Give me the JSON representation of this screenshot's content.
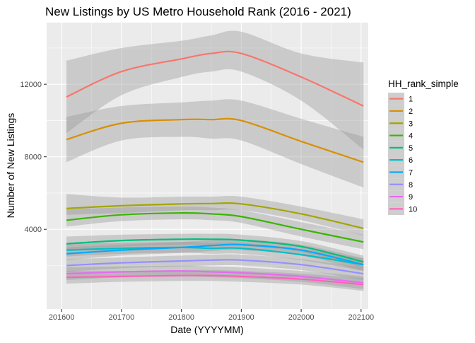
{
  "chart_data": {
    "type": "line",
    "title": "New Listings by US Metro Household Rank (2016 - 2021)",
    "xlabel": "Date (YYYYMM)",
    "ylabel": "Number of New Listings",
    "xlim": [
      201575,
      202112
    ],
    "ylim": [
      -400,
      15400
    ],
    "x_ticks": [
      201600,
      201700,
      201800,
      201900,
      202000,
      202100
    ],
    "x_tick_labels": [
      "201600",
      "201700",
      "201800",
      "201900",
      "202000",
      "202100"
    ],
    "y_ticks": [
      4000,
      8000,
      12000
    ],
    "y_tick_labels": [
      "4000",
      "8000",
      "12000"
    ],
    "grid": true,
    "legend": {
      "title": "HH_rank_simple",
      "placement": "right"
    },
    "x": [
      201608,
      201700,
      201800,
      201850,
      201900,
      202000,
      202104
    ],
    "series": [
      {
        "name": "1",
        "color": "#F8766D",
        "values": [
          11300,
          12700,
          13400,
          13700,
          13700,
          12400,
          10800
        ],
        "band": [
          [
            9300,
            13300
          ],
          [
            11400,
            14000
          ],
          [
            12400,
            14400
          ],
          [
            12700,
            14700
          ],
          [
            12700,
            14900
          ],
          [
            11100,
            13700
          ],
          [
            8400,
            13200
          ]
        ]
      },
      {
        "name": "2",
        "color": "#D89000",
        "values": [
          8950,
          9850,
          10050,
          10050,
          10000,
          8850,
          7700
        ],
        "band": [
          [
            7700,
            10200
          ],
          [
            8900,
            10800
          ],
          [
            9100,
            11000
          ],
          [
            9000,
            11100
          ],
          [
            8900,
            11100
          ],
          [
            7600,
            10100
          ],
          [
            6300,
            9100
          ]
        ]
      },
      {
        "name": "3",
        "color": "#A3A500",
        "values": [
          5150,
          5300,
          5400,
          5420,
          5400,
          4850,
          4050
        ],
        "band": [
          [
            4800,
            5950
          ],
          [
            4900,
            5750
          ],
          [
            5050,
            5800
          ],
          [
            5050,
            5800
          ],
          [
            5050,
            5800
          ],
          [
            4500,
            5250
          ],
          [
            3650,
            4550
          ]
        ]
      },
      {
        "name": "4",
        "color": "#39B600",
        "values": [
          4500,
          4800,
          4900,
          4850,
          4700,
          4000,
          3300
        ],
        "band": [
          [
            4150,
            5100
          ],
          [
            4450,
            5200
          ],
          [
            4550,
            5250
          ],
          [
            4500,
            5200
          ],
          [
            4350,
            5050
          ],
          [
            3600,
            4400
          ],
          [
            2900,
            3700
          ]
        ]
      },
      {
        "name": "5",
        "color": "#00BF7D",
        "values": [
          3200,
          3380,
          3450,
          3450,
          3400,
          3050,
          2200
        ],
        "band": [
          [
            2850,
            3600
          ],
          [
            3050,
            3700
          ],
          [
            3150,
            3750
          ],
          [
            3150,
            3750
          ],
          [
            3100,
            3700
          ],
          [
            2750,
            3350
          ],
          [
            1850,
            2550
          ]
        ]
      },
      {
        "name": "6",
        "color": "#00BFC4",
        "values": [
          2850,
          2950,
          3000,
          2950,
          2950,
          2600,
          2050
        ],
        "band": [
          [
            2500,
            3200
          ],
          [
            2650,
            3250
          ],
          [
            2700,
            3300
          ],
          [
            2650,
            3250
          ],
          [
            2650,
            3250
          ],
          [
            2300,
            2900
          ],
          [
            1700,
            2400
          ]
        ]
      },
      {
        "name": "7",
        "color": "#00A9FF",
        "values": [
          2650,
          2850,
          3000,
          3100,
          3150,
          2850,
          2050
        ],
        "band": [
          [
            2300,
            3000
          ],
          [
            2550,
            3150
          ],
          [
            2700,
            3300
          ],
          [
            2800,
            3400
          ],
          [
            2850,
            3450
          ],
          [
            2550,
            3150
          ],
          [
            1700,
            2400
          ]
        ]
      },
      {
        "name": "8",
        "color": "#9590FF",
        "values": [
          2000,
          2150,
          2250,
          2300,
          2300,
          2050,
          1550
        ],
        "band": [
          [
            1650,
            2350
          ],
          [
            1850,
            2450
          ],
          [
            1950,
            2550
          ],
          [
            2000,
            2600
          ],
          [
            2000,
            2600
          ],
          [
            1750,
            2350
          ],
          [
            1200,
            1900
          ]
        ]
      },
      {
        "name": "9",
        "color": "#E76BF3",
        "values": [
          1550,
          1650,
          1700,
          1650,
          1600,
          1400,
          1050
        ],
        "band": [
          [
            1200,
            1900
          ],
          [
            1350,
            1950
          ],
          [
            1400,
            2000
          ],
          [
            1350,
            1950
          ],
          [
            1300,
            1900
          ],
          [
            1100,
            1700
          ],
          [
            700,
            1400
          ]
        ]
      },
      {
        "name": "10",
        "color": "#FF62BC",
        "values": [
          1350,
          1400,
          1450,
          1450,
          1400,
          1250,
          950
        ],
        "band": [
          [
            1000,
            1700
          ],
          [
            1100,
            1700
          ],
          [
            1150,
            1750
          ],
          [
            1150,
            1750
          ],
          [
            1100,
            1700
          ],
          [
            950,
            1550
          ],
          [
            600,
            1300
          ]
        ]
      }
    ],
    "colors": {
      "panel": "#EBEBEB",
      "grid": "#FFFFFF",
      "band": "#999999",
      "legend_key_bg": "#F2F2F2"
    }
  }
}
